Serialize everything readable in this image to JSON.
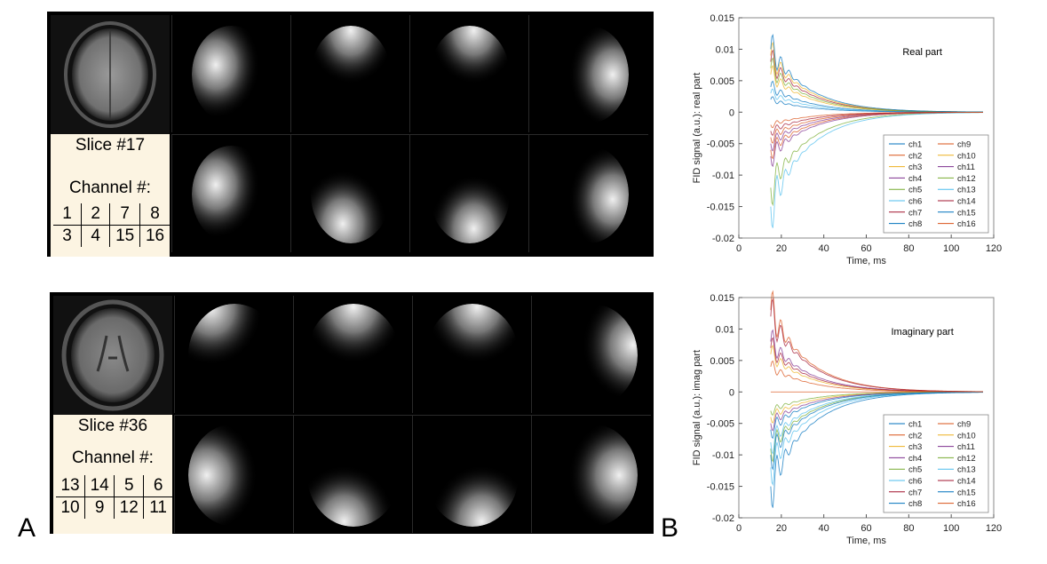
{
  "panels": {
    "A": "A",
    "B": "B"
  },
  "top": {
    "slice_label": "Slice #17",
    "channel_label": "Channel #:",
    "channels": [
      [
        "1",
        "2",
        "7",
        "8"
      ],
      [
        "3",
        "4",
        "15",
        "16"
      ]
    ]
  },
  "bottom": {
    "slice_label": "Slice #36",
    "channel_label": "Channel #:",
    "channels": [
      [
        "13",
        "14",
        "5",
        "6"
      ],
      [
        "10",
        "9",
        "12",
        "11"
      ]
    ]
  },
  "chart_data": [
    {
      "type": "line",
      "title": "Real part",
      "xlabel": "Time, ms",
      "ylabel": "FID signal (a.u.): real part",
      "xlim": [
        0,
        120
      ],
      "ylim": [
        -0.02,
        0.015
      ],
      "xticks": [
        "0",
        "20",
        "40",
        "60",
        "80",
        "100",
        "120"
      ],
      "yticks": [
        "0.015",
        "0.01",
        "0.005",
        "0",
        "-0.005",
        "-0.01",
        "-0.015",
        "-0.02"
      ],
      "legend": "bottom-right",
      "legend_entries": [
        "ch1",
        "ch2",
        "ch3",
        "ch4",
        "ch5",
        "ch6",
        "ch7",
        "ch8",
        "ch9",
        "ch10",
        "ch11",
        "ch12",
        "ch13",
        "ch14",
        "ch15",
        "ch16"
      ],
      "series_start_values": [
        0.004,
        -0.004,
        0.006,
        -0.005,
        -0.012,
        0.003,
        0.008,
        0.002,
        -0.002,
        0.009,
        -0.007,
        0.007,
        -0.015,
        -0.003,
        0.01,
        -0.006
      ],
      "x_range": [
        15,
        115
      ]
    },
    {
      "type": "line",
      "title": "Imaginary part",
      "xlabel": "Time, ms",
      "ylabel": "FID signal (a.u.): imag part",
      "xlim": [
        0,
        120
      ],
      "ylim": [
        -0.02,
        0.015
      ],
      "xticks": [
        "0",
        "20",
        "40",
        "60",
        "80",
        "100",
        "120"
      ],
      "yticks": [
        "0.015",
        "0.01",
        "0.005",
        "0",
        "-0.005",
        "-0.01",
        "-0.015",
        "-0.02"
      ],
      "legend": "bottom-right",
      "legend_entries": [
        "ch1",
        "ch2",
        "ch3",
        "ch4",
        "ch5",
        "ch6",
        "ch7",
        "ch8",
        "ch9",
        "ch10",
        "ch11",
        "ch12",
        "ch13",
        "ch14",
        "ch15",
        "ch16"
      ],
      "series_start_values": [
        -0.006,
        0.013,
        -0.004,
        0.008,
        -0.009,
        -0.012,
        0.012,
        -0.015,
        0.0,
        0.006,
        -0.005,
        -0.003,
        -0.008,
        0.007,
        -0.01,
        0.004
      ],
      "x_range": [
        15,
        115
      ]
    }
  ],
  "series_colors": [
    "#0072bd",
    "#d95319",
    "#edb120",
    "#7e2f8e",
    "#77ac30",
    "#4dbeee",
    "#a2142f",
    "#0072bd",
    "#d95319",
    "#edb120",
    "#7e2f8e",
    "#77ac30",
    "#4dbeee",
    "#a2142f",
    "#0072bd",
    "#d95319"
  ]
}
